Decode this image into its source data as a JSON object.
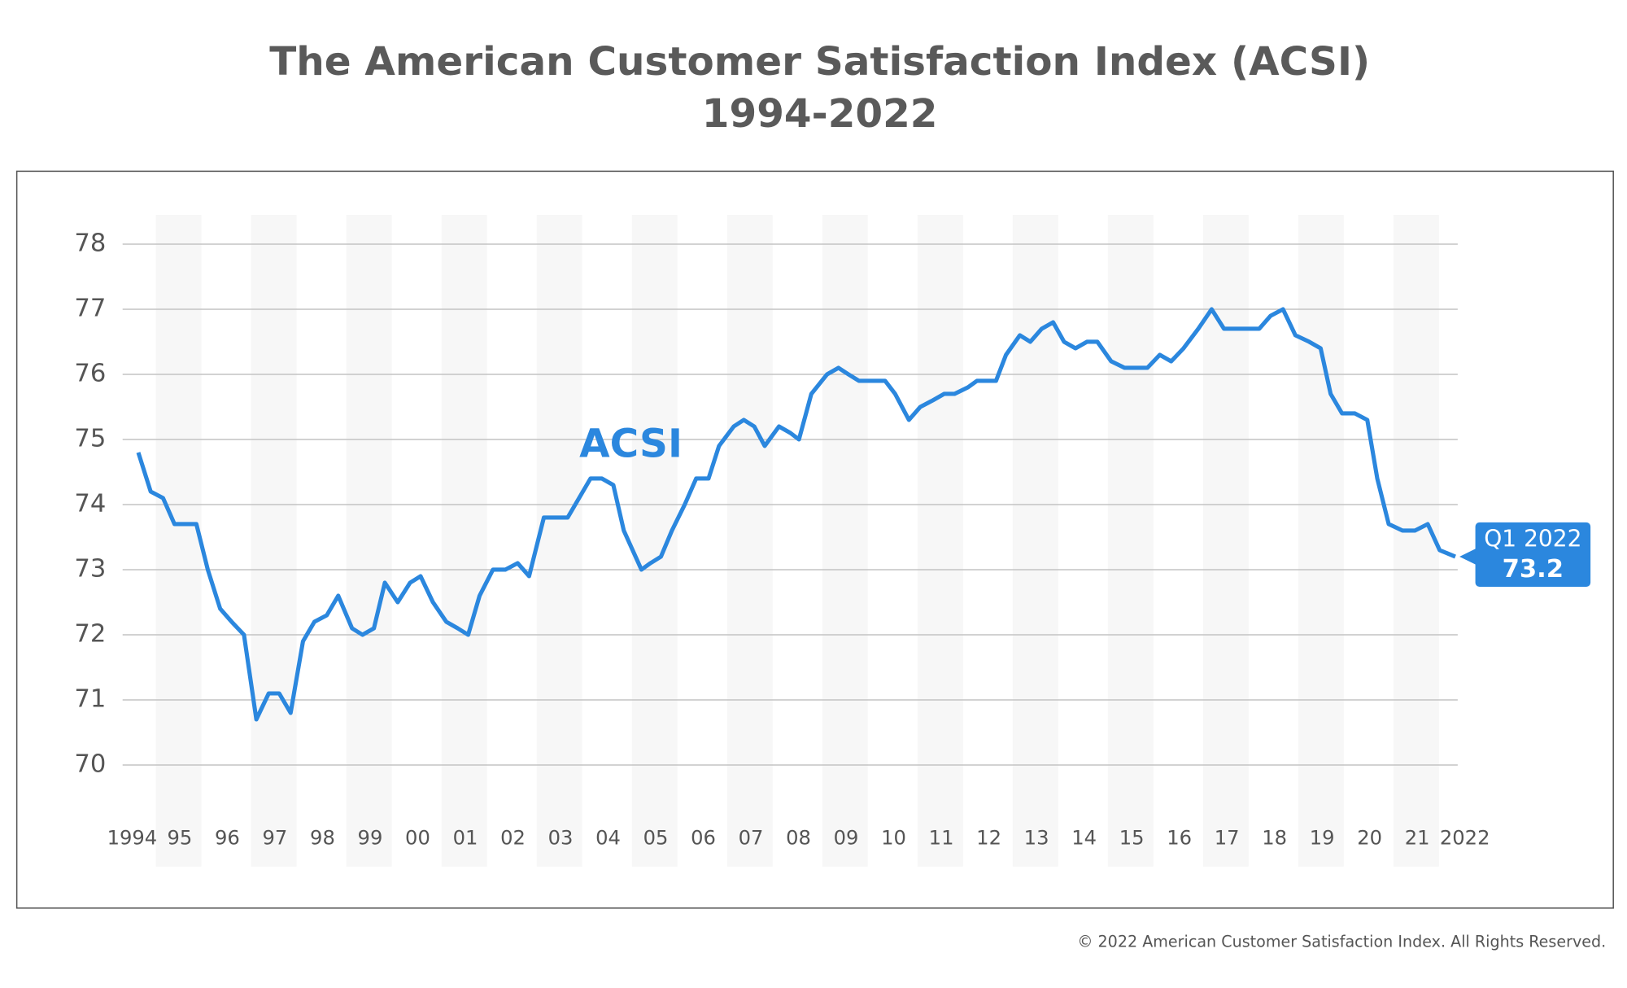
{
  "chart_data": {
    "type": "line",
    "title": "The American Customer Satisfaction Index (ACSI)",
    "subtitle": "1994-2022",
    "footer": "© 2022 American Customer Satisfaction Index. All Rights Reserved.",
    "x": [
      1994.63,
      1994.89,
      1995.15,
      1995.39,
      1995.61,
      1995.85,
      1996.09,
      1996.35,
      1996.59,
      1996.85,
      1997.11,
      1997.37,
      1997.59,
      1997.83,
      1998.09,
      1998.33,
      1998.59,
      1998.83,
      1999.12,
      1999.34,
      1999.58,
      1999.81,
      2000.08,
      2000.34,
      2000.56,
      2000.82,
      2001.1,
      2001.34,
      2001.56,
      2001.8,
      2002.08,
      2002.34,
      2002.6,
      2002.84,
      2003.15,
      2003.41,
      2003.65,
      2003.89,
      2004.13,
      2004.37,
      2004.61,
      2004.83,
      2005.2,
      2005.39,
      2005.61,
      2005.84,
      2006.11,
      2006.35,
      2006.61,
      2006.83,
      2007.14,
      2007.35,
      2007.57,
      2007.79,
      2008.09,
      2008.33,
      2008.51,
      2008.77,
      2009.1,
      2009.34,
      2009.55,
      2009.77,
      2010.03,
      2010.32,
      2010.53,
      2010.82,
      2011.06,
      2011.32,
      2011.56,
      2011.78,
      2012.06,
      2012.25,
      2012.49,
      2012.65,
      2012.86,
      2013.15,
      2013.37,
      2013.61,
      2013.85,
      2014.08,
      2014.32,
      2014.56,
      2014.78,
      2015.07,
      2015.35,
      2015.59,
      2015.83,
      2016.09,
      2016.33,
      2016.59,
      2016.9,
      2017.18,
      2017.44,
      2017.68,
      2017.92,
      2018.18,
      2018.42,
      2018.68,
      2018.94,
      2019.23,
      2019.47,
      2019.68,
      2019.92,
      2020.19,
      2020.45,
      2020.66,
      2020.9,
      2021.19,
      2021.45,
      2021.72,
      2021.97,
      2022.3
    ],
    "series": [
      {
        "name": "ACSI",
        "color": "#2b87de",
        "values": [
          74.8,
          74.2,
          74.1,
          73.7,
          73.7,
          73.7,
          73.0,
          72.4,
          72.2,
          72.0,
          70.7,
          71.1,
          71.1,
          70.8,
          71.9,
          72.2,
          72.3,
          72.6,
          72.1,
          72.0,
          72.1,
          72.8,
          72.5,
          72.8,
          72.9,
          72.5,
          72.2,
          72.1,
          72.0,
          72.6,
          73.0,
          73.0,
          73.1,
          72.9,
          73.8,
          73.8,
          73.8,
          74.1,
          74.4,
          74.4,
          74.3,
          73.6,
          73.0,
          73.1,
          73.2,
          73.6,
          74.0,
          74.4,
          74.4,
          74.9,
          75.2,
          75.3,
          75.2,
          74.9,
          75.2,
          75.1,
          75.0,
          75.7,
          76.0,
          76.1,
          76.0,
          75.9,
          75.9,
          75.9,
          75.7,
          75.3,
          75.5,
          75.6,
          75.7,
          75.7,
          75.8,
          75.9,
          75.9,
          75.9,
          76.3,
          76.6,
          76.5,
          76.7,
          76.8,
          76.5,
          76.4,
          76.5,
          76.5,
          76.2,
          76.1,
          76.1,
          76.1,
          76.3,
          76.2,
          76.4,
          76.7,
          77.0,
          76.7,
          76.7,
          76.7,
          76.7,
          76.9,
          77.0,
          76.6,
          76.5,
          76.4,
          75.7,
          75.4,
          75.4,
          75.3,
          74.4,
          73.7,
          73.6,
          73.6,
          73.7,
          73.3,
          73.2
        ]
      }
    ],
    "callout": "Q1 2022",
    "xlim": [
      1994.3,
      2022.35
    ],
    "ylim": [
      68.44,
      78.45
    ],
    "yticks": [
      70,
      71,
      72,
      73,
      74,
      75,
      76,
      77,
      78
    ],
    "xticks": [
      1994,
      {
        "value": 1995,
        "label": "95"
      },
      {
        "value": 1996,
        "label": "96"
      },
      {
        "value": 1997,
        "label": "97"
      },
      {
        "value": 1998,
        "label": "98"
      },
      {
        "value": 1999,
        "label": "99"
      },
      {
        "value": 2000,
        "label": "00"
      },
      {
        "value": 2001,
        "label": "01"
      },
      {
        "value": 2002,
        "label": "02"
      },
      {
        "value": 2003,
        "label": "03"
      },
      {
        "value": 2004,
        "label": "04"
      },
      {
        "value": 2005,
        "label": "05"
      },
      {
        "value": 2006,
        "label": "06"
      },
      {
        "value": 2007,
        "label": "07"
      },
      {
        "value": 2008,
        "label": "08"
      },
      {
        "value": 2009,
        "label": "09"
      },
      {
        "value": 2010,
        "label": "10"
      },
      {
        "value": 2011,
        "label": "11"
      },
      {
        "value": 2012,
        "label": "12"
      },
      {
        "value": 2013,
        "label": "13"
      },
      {
        "value": 2014,
        "label": "14"
      },
      {
        "value": 2015,
        "label": "15"
      },
      {
        "value": 2016,
        "label": "16"
      },
      {
        "value": 2017,
        "label": "17"
      },
      {
        "value": 2018,
        "label": "18"
      },
      {
        "value": 2019,
        "label": "19"
      },
      {
        "value": 2020,
        "label": "20"
      },
      {
        "value": 2021,
        "label": "21"
      },
      2022
    ],
    "grid": true
  }
}
